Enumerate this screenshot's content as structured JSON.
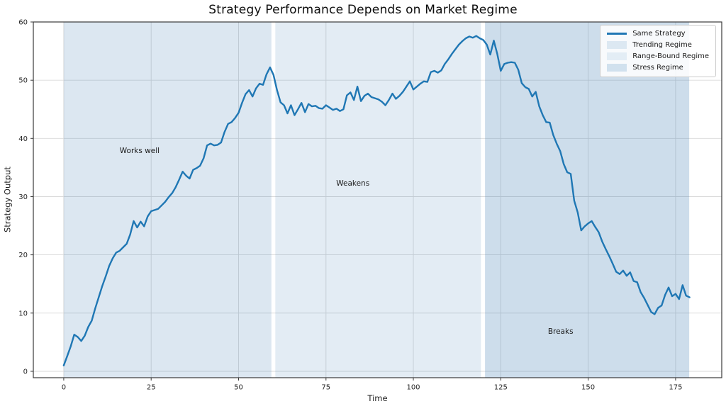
{
  "figure": {
    "title": "Strategy Performance Depends on Market Regime"
  },
  "chart_data": {
    "type": "line",
    "title": "Strategy Performance Depends on Market Regime",
    "xlabel": "Time",
    "ylabel": "Strategy Output",
    "xlim": [
      -8.7,
      188.2
    ],
    "ylim": [
      -1.1,
      60
    ],
    "xticks": [
      0,
      25,
      50,
      75,
      100,
      125,
      150,
      175
    ],
    "yticks": [
      0,
      10,
      20,
      30,
      40,
      50,
      60
    ],
    "grid": true,
    "grid_color": "#d9d9d9",
    "spine_color": "#3a3a3a",
    "line_color": "#1f77b4",
    "regions": [
      {
        "name": "Trending Regime",
        "start": 0,
        "end": 59.4,
        "color": "rgba(70,130,180,0.19)"
      },
      {
        "name": "Range-Bound Regime",
        "start": 60.5,
        "end": 119.3,
        "color": "rgba(70,130,180,0.15)"
      },
      {
        "name": "Stress Regime",
        "start": 120.5,
        "end": 178.9,
        "color": "rgba(70,130,180,0.27)"
      }
    ],
    "annotations": [
      {
        "text": "Works well",
        "x": 21.7,
        "y": 37.9
      },
      {
        "text": "Weakens",
        "x": 82.7,
        "y": 32.3
      },
      {
        "text": "Breaks",
        "x": 142.1,
        "y": 6.9
      }
    ],
    "legend": {
      "position": "upper right",
      "entries": [
        {
          "label": "Same Strategy",
          "type": "line",
          "color": "#1f77b4"
        },
        {
          "label": "Trending Regime",
          "type": "patch",
          "color": "#dce8f2"
        },
        {
          "label": "Range-Bound Regime",
          "type": "patch",
          "color": "#e3edf5"
        },
        {
          "label": "Stress Regime",
          "type": "patch",
          "color": "#d1e1ee"
        }
      ]
    },
    "series": [
      {
        "name": "Same Strategy",
        "x_start": 0,
        "x_step": 1,
        "values": [
          1.0,
          2.6,
          4.3,
          6.3,
          5.9,
          5.2,
          6.1,
          7.6,
          8.7,
          10.8,
          12.7,
          14.6,
          16.3,
          18.1,
          19.4,
          20.4,
          20.7,
          21.3,
          21.9,
          23.5,
          25.8,
          24.7,
          25.7,
          24.9,
          26.6,
          27.5,
          27.7,
          27.9,
          28.5,
          29.1,
          29.9,
          30.6,
          31.6,
          32.9,
          34.3,
          33.6,
          33.1,
          34.6,
          34.9,
          35.3,
          36.6,
          38.8,
          39.1,
          38.8,
          38.9,
          39.3,
          41.1,
          42.5,
          42.8,
          43.5,
          44.4,
          46.1,
          47.6,
          48.3,
          47.2,
          48.6,
          49.4,
          49.2,
          51.0,
          52.2,
          50.9,
          48.3,
          46.2,
          45.7,
          44.3,
          45.7,
          44.0,
          45.0,
          46.1,
          44.5,
          45.9,
          45.5,
          45.6,
          45.2,
          45.1,
          45.7,
          45.3,
          44.9,
          45.1,
          44.7,
          45.0,
          47.4,
          47.9,
          46.6,
          48.9,
          46.4,
          47.3,
          47.7,
          47.1,
          46.9,
          46.7,
          46.3,
          45.7,
          46.6,
          47.7,
          46.8,
          47.3,
          48.0,
          48.9,
          49.8,
          48.4,
          48.9,
          49.4,
          49.8,
          49.7,
          51.4,
          51.6,
          51.3,
          51.7,
          52.8,
          53.6,
          54.5,
          55.3,
          56.1,
          56.7,
          57.2,
          57.5,
          57.3,
          57.6,
          57.2,
          56.9,
          56.1,
          54.4,
          56.8,
          54.5,
          51.6,
          52.8,
          53.0,
          53.1,
          53.0,
          51.8,
          49.5,
          48.8,
          48.5,
          47.2,
          48.0,
          45.5,
          44.0,
          42.8,
          42.7,
          40.6,
          39.1,
          37.8,
          35.6,
          34.2,
          33.9,
          29.3,
          27.3,
          24.2,
          24.9,
          25.4,
          25.8,
          24.8,
          23.9,
          22.3,
          21.0,
          19.8,
          18.5,
          17.1,
          16.7,
          17.3,
          16.4,
          17.0,
          15.5,
          15.3,
          13.6,
          12.6,
          11.4,
          10.2,
          9.8,
          10.9,
          11.3,
          13.1,
          14.4,
          12.9,
          13.3,
          12.4,
          14.8,
          13.0,
          12.7
        ]
      }
    ]
  }
}
